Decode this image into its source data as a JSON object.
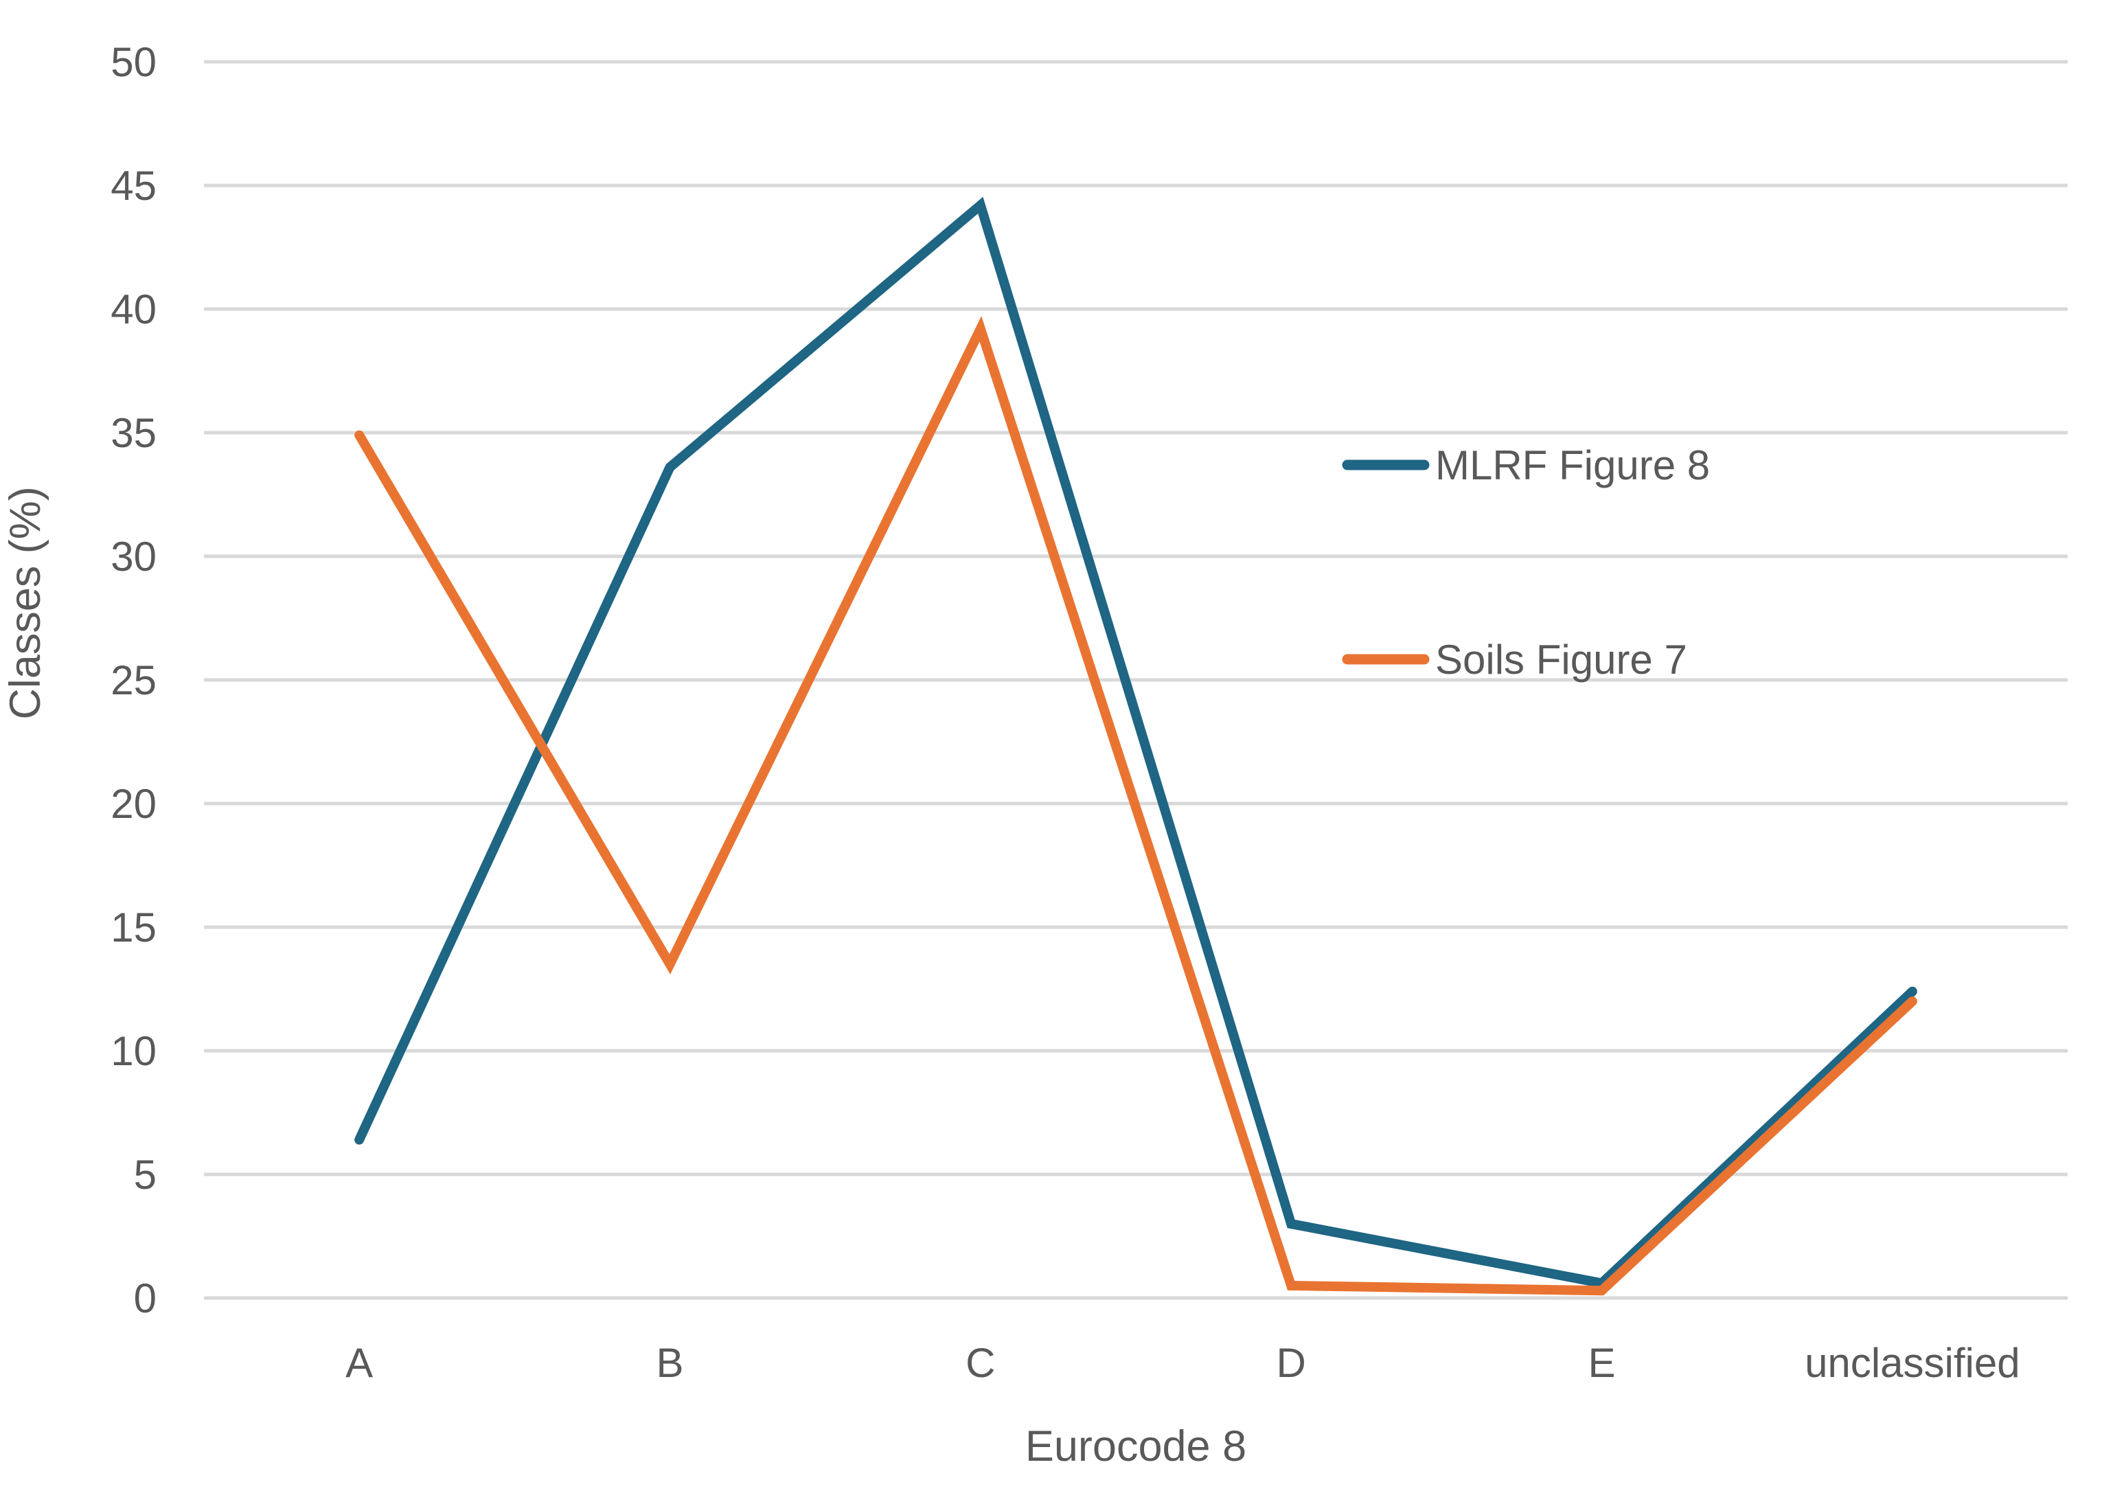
{
  "chart_data": {
    "type": "line",
    "title": "",
    "xlabel": "Eurocode 8",
    "ylabel": "Classes (%)",
    "categories": [
      "A",
      "B",
      "C",
      "D",
      "E",
      "unclassified"
    ],
    "series": [
      {
        "name": "MLRF Figure 8",
        "color": "#1F6584",
        "values": [
          6.4,
          33.6,
          44.2,
          3.0,
          0.6,
          12.4
        ]
      },
      {
        "name": "Soils  Figure 7",
        "color": "#E97432",
        "values": [
          34.9,
          13.5,
          39.2,
          0.5,
          0.3,
          12.0
        ]
      }
    ],
    "ylim": [
      0,
      50
    ],
    "yticks": [
      0,
      5,
      10,
      15,
      20,
      25,
      30,
      35,
      40,
      45,
      50
    ],
    "grid": true,
    "gridline_color": "#D9D9D9",
    "text_color": "#595959",
    "legend_position": "right-inside"
  }
}
